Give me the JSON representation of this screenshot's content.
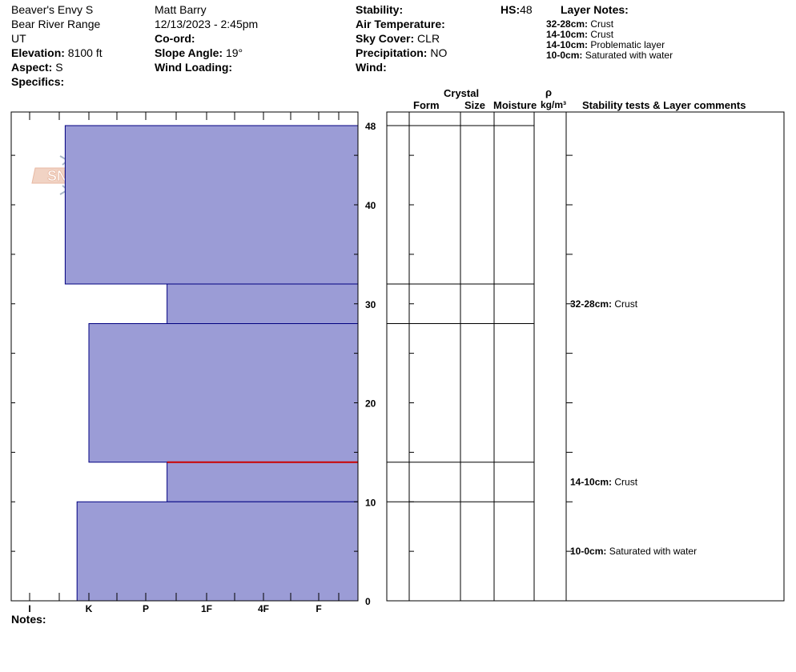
{
  "header": {
    "site": "Beaver's Envy S",
    "range": "Bear River Range",
    "state": "UT",
    "elevation_label": "Elevation:",
    "elevation_value": "8100 ft",
    "aspect_label": "Aspect:",
    "aspect_value": "S",
    "specifics_label": "Specifics:",
    "observer": "Matt Barry",
    "datetime": "12/13/2023 - 2:45pm",
    "coord_label": "Co-ord:",
    "slope_label": "Slope Angle:",
    "slope_value": "19°",
    "wind_loading_label": "Wind Loading:",
    "stability_label": "Stability:",
    "air_temp_label": "Air Temperature:",
    "sky_label": "Sky Cover:",
    "sky_value": "CLR",
    "precip_label": "Precipitation:",
    "precip_value": "NO",
    "wind_label": "Wind:",
    "hs_label": "HS:",
    "hs_value": "48"
  },
  "layer_notes": {
    "title": "Layer Notes:",
    "items": [
      {
        "range": "32-28cm:",
        "text": "Crust"
      },
      {
        "range": "14-10cm:",
        "text": "Crust"
      },
      {
        "range": "14-10cm:",
        "text": "Problematic layer"
      },
      {
        "range": "10-0cm:",
        "text": "Saturated with water"
      }
    ]
  },
  "table_headers": {
    "crystal": "Crystal",
    "form": "Form",
    "size": "Size",
    "moisture": "Moisture",
    "rho": "ρ",
    "density_unit": "kg/m³",
    "comments": "Stability tests & Layer comments"
  },
  "watermark": "SNOW PILOT",
  "notes_label": "Notes:",
  "chart_data": {
    "type": "bar",
    "orientation": "horizontal-layers",
    "y_range_cm": [
      0,
      48
    ],
    "y_ticks": [
      0,
      10,
      20,
      30,
      40,
      48
    ],
    "hardness_scale": [
      "I",
      "K",
      "P",
      "1F",
      "4F",
      "F"
    ],
    "layers": [
      {
        "top": 48,
        "bottom": 32,
        "hardness_index": 0.6
      },
      {
        "top": 32,
        "bottom": 28,
        "hardness_index": 2.35
      },
      {
        "top": 28,
        "bottom": 14,
        "hardness_index": 1.0
      },
      {
        "top": 14,
        "bottom": 10,
        "hardness_index": 2.35
      },
      {
        "top": 10,
        "bottom": 0,
        "hardness_index": 0.8
      }
    ],
    "problem_layer_depth": 14,
    "layer_comments": [
      {
        "depth": 30,
        "range": "32-28cm:",
        "text": "Crust"
      },
      {
        "depth": 12,
        "range": "14-10cm:",
        "text": "Crust"
      },
      {
        "depth": 5,
        "range": "10-0cm:",
        "text": "Saturated with water"
      }
    ],
    "colors": {
      "layer_fill": "#9b9cd6",
      "layer_edge": "#000080",
      "problem": "#cc0000",
      "watermark": "#e8b9a3",
      "flake": "#aab8c8"
    }
  }
}
